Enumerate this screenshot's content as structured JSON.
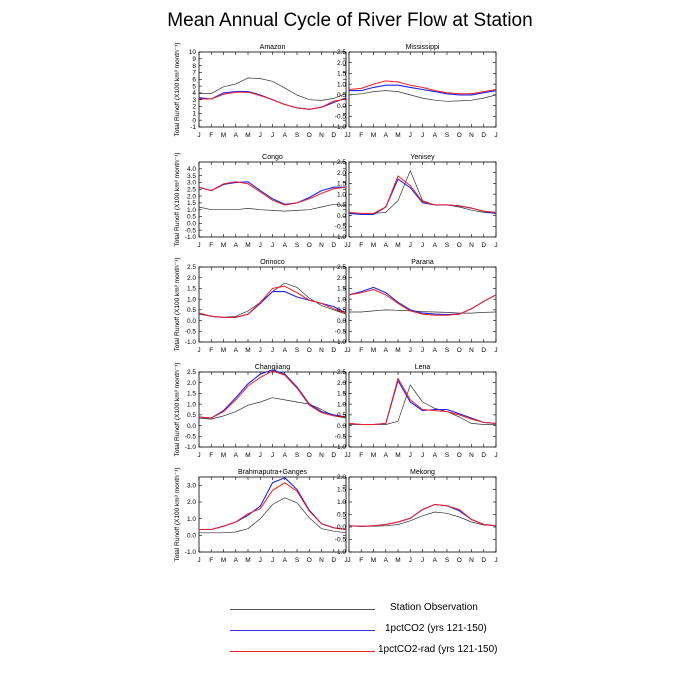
{
  "title": "Mean Annual Cycle of River Flow at Station",
  "ylabel": "Total Runoff (X100 km³ month⁻¹)",
  "months": [
    "J",
    "F",
    "M",
    "A",
    "M",
    "J",
    "J",
    "A",
    "S",
    "O",
    "N",
    "D",
    "J"
  ],
  "legend": [
    {
      "label": "Station Observation",
      "color": "#555555"
    },
    {
      "label": "1pctCO2 (yrs 121-150)",
      "color": "#3333ee"
    },
    {
      "label": "1pctCO2-rad (yrs 121-150)",
      "color": "#ee2222"
    }
  ],
  "chart_data": [
    {
      "type": "line",
      "title": "Amazon",
      "ylim": [
        -1,
        10
      ],
      "yticks": [
        -1,
        0,
        1,
        2,
        3,
        4,
        5,
        6,
        7,
        8,
        9,
        10
      ],
      "tick_decimals": 0,
      "series": [
        {
          "name": "Station Observation",
          "values": [
            3.9,
            3.9,
            4.9,
            5.3,
            6.2,
            6.1,
            5.7,
            4.7,
            3.7,
            3.0,
            2.9,
            3.2,
            3.9
          ]
        },
        {
          "name": "1pctCO2 (yrs 121-150)",
          "values": [
            3.3,
            3.1,
            4.0,
            4.2,
            4.2,
            3.7,
            3.0,
            2.3,
            1.8,
            1.6,
            1.9,
            2.6,
            3.3
          ]
        },
        {
          "name": "1pctCO2-rad (yrs 121-150)",
          "values": [
            3.1,
            3.1,
            3.8,
            4.1,
            4.1,
            3.6,
            3.0,
            2.3,
            1.8,
            1.6,
            1.9,
            2.8,
            3.1
          ]
        }
      ]
    },
    {
      "type": "line",
      "title": "Mississippi",
      "ylim": [
        -1,
        2.5
      ],
      "yticks": [
        -1,
        -0.5,
        0,
        0.5,
        1,
        1.5,
        2,
        2.5
      ],
      "tick_decimals": 1,
      "series": [
        {
          "name": "Station Observation",
          "values": [
            0.5,
            0.55,
            0.65,
            0.7,
            0.65,
            0.5,
            0.35,
            0.25,
            0.2,
            0.22,
            0.25,
            0.35,
            0.5
          ]
        },
        {
          "name": "1pctCO2 (yrs 121-150)",
          "values": [
            0.7,
            0.7,
            0.85,
            0.95,
            0.95,
            0.85,
            0.75,
            0.65,
            0.55,
            0.5,
            0.5,
            0.6,
            0.7
          ]
        },
        {
          "name": "1pctCO2-rad (yrs 121-150)",
          "values": [
            0.75,
            0.8,
            1.0,
            1.15,
            1.1,
            0.95,
            0.85,
            0.7,
            0.6,
            0.55,
            0.55,
            0.65,
            0.75
          ]
        }
      ]
    },
    {
      "type": "line",
      "title": "Congo",
      "ylim": [
        -1,
        4.5
      ],
      "yticks": [
        -1,
        -0.5,
        0,
        0.5,
        1,
        1.5,
        2,
        2.5,
        3,
        3.5,
        4
      ],
      "tick_decimals": 1,
      "series": [
        {
          "name": "Station Observation",
          "values": [
            1.2,
            1.0,
            1.0,
            1.0,
            1.1,
            1.0,
            0.95,
            0.9,
            0.95,
            1.0,
            1.2,
            1.4,
            1.3
          ]
        },
        {
          "name": "1pctCO2 (yrs 121-150)",
          "values": [
            2.65,
            2.4,
            2.85,
            3.0,
            3.05,
            2.4,
            1.8,
            1.4,
            1.5,
            1.9,
            2.4,
            2.65,
            2.65
          ]
        },
        {
          "name": "1pctCO2-rad (yrs 121-150)",
          "values": [
            2.65,
            2.4,
            2.9,
            3.05,
            2.9,
            2.3,
            1.7,
            1.35,
            1.5,
            1.8,
            2.2,
            2.55,
            2.65
          ]
        }
      ]
    },
    {
      "type": "line",
      "title": "Yenisey",
      "ylim": [
        -1,
        2.5
      ],
      "yticks": [
        -1,
        -0.5,
        0,
        0.5,
        1,
        1.5,
        2,
        2.5
      ],
      "tick_decimals": 1,
      "series": [
        {
          "name": "Station Observation",
          "values": [
            0.1,
            0.1,
            0.1,
            0.15,
            0.7,
            2.1,
            0.7,
            0.5,
            0.5,
            0.4,
            0.25,
            0.15,
            0.1
          ]
        },
        {
          "name": "1pctCO2 (yrs 121-150)",
          "values": [
            0.1,
            0.05,
            0.05,
            0.4,
            1.7,
            1.3,
            0.6,
            0.5,
            0.5,
            0.45,
            0.35,
            0.2,
            0.1
          ]
        },
        {
          "name": "1pctCO2-rad (yrs 121-150)",
          "values": [
            0.15,
            0.1,
            0.1,
            0.4,
            1.85,
            1.4,
            0.65,
            0.5,
            0.5,
            0.45,
            0.35,
            0.2,
            0.15
          ]
        }
      ]
    },
    {
      "type": "line",
      "title": "Orinoco",
      "ylim": [
        -1,
        2.5
      ],
      "yticks": [
        -1,
        -0.5,
        0,
        0.5,
        1,
        1.5,
        2,
        2.5
      ],
      "tick_decimals": 1,
      "series": [
        {
          "name": "Station Observation",
          "values": [
            0.3,
            0.2,
            0.15,
            0.2,
            0.45,
            0.85,
            1.35,
            1.75,
            1.55,
            1.05,
            0.7,
            0.5,
            0.3
          ]
        },
        {
          "name": "1pctCO2 (yrs 121-150)",
          "values": [
            0.35,
            0.2,
            0.15,
            0.15,
            0.3,
            0.8,
            1.35,
            1.35,
            1.1,
            0.95,
            0.8,
            0.65,
            0.35
          ]
        },
        {
          "name": "1pctCO2-rad (yrs 121-150)",
          "values": [
            0.35,
            0.2,
            0.15,
            0.15,
            0.3,
            0.85,
            1.5,
            1.6,
            1.3,
            0.95,
            0.8,
            0.55,
            0.35
          ]
        }
      ]
    },
    {
      "type": "line",
      "title": "Parana",
      "ylim": [
        -1,
        2.5
      ],
      "yticks": [
        -1,
        -0.5,
        0,
        0.5,
        1,
        1.5,
        2,
        2.5
      ],
      "tick_decimals": 1,
      "series": [
        {
          "name": "Station Observation",
          "values": [
            0.4,
            0.4,
            0.45,
            0.5,
            0.48,
            0.45,
            0.42,
            0.4,
            0.38,
            0.35,
            0.35,
            0.38,
            0.4
          ]
        },
        {
          "name": "1pctCO2 (yrs 121-150)",
          "values": [
            1.2,
            1.35,
            1.55,
            1.3,
            0.85,
            0.5,
            0.35,
            0.3,
            0.28,
            0.3,
            0.55,
            0.9,
            1.2
          ]
        },
        {
          "name": "1pctCO2-rad (yrs 121-150)",
          "values": [
            1.2,
            1.3,
            1.45,
            1.2,
            0.8,
            0.45,
            0.3,
            0.25,
            0.25,
            0.3,
            0.55,
            0.9,
            1.2
          ]
        }
      ]
    },
    {
      "type": "line",
      "title": "Changjiang",
      "ylim": [
        -1,
        2.5
      ],
      "yticks": [
        -1,
        -0.5,
        0,
        0.5,
        1,
        1.5,
        2,
        2.5
      ],
      "tick_decimals": 1,
      "series": [
        {
          "name": "Station Observation",
          "values": [
            0.35,
            0.3,
            0.45,
            0.65,
            0.95,
            1.1,
            1.3,
            1.2,
            1.1,
            1.0,
            0.75,
            0.45,
            0.35
          ]
        },
        {
          "name": "1pctCO2 (yrs 121-150)",
          "values": [
            0.4,
            0.35,
            0.7,
            1.3,
            1.95,
            2.4,
            2.6,
            2.4,
            1.8,
            1.0,
            0.65,
            0.5,
            0.4
          ]
        },
        {
          "name": "1pctCO2-rad (yrs 121-150)",
          "values": [
            0.4,
            0.35,
            0.65,
            1.2,
            1.85,
            2.25,
            2.55,
            2.35,
            1.75,
            0.95,
            0.6,
            0.45,
            0.4
          ]
        }
      ]
    },
    {
      "type": "line",
      "title": "Lena",
      "ylim": [
        -1,
        2.5
      ],
      "yticks": [
        -1,
        -0.5,
        0,
        0.5,
        1,
        1.5,
        2,
        2.5
      ],
      "tick_decimals": 1,
      "series": [
        {
          "name": "Station Observation",
          "values": [
            0.05,
            0.05,
            0.05,
            0.05,
            0.2,
            1.9,
            1.1,
            0.8,
            0.65,
            0.4,
            0.1,
            0.05,
            0.05
          ]
        },
        {
          "name": "1pctCO2 (yrs 121-150)",
          "values": [
            0.1,
            0.05,
            0.05,
            0.1,
            2.1,
            1.1,
            0.7,
            0.75,
            0.75,
            0.55,
            0.35,
            0.15,
            0.1
          ]
        },
        {
          "name": "1pctCO2-rad (yrs 121-150)",
          "values": [
            0.1,
            0.05,
            0.05,
            0.1,
            2.2,
            1.2,
            0.75,
            0.7,
            0.65,
            0.5,
            0.3,
            0.15,
            0.1
          ]
        }
      ]
    },
    {
      "type": "line",
      "title": "Brahmaputra+Ganges",
      "ylim": [
        -1,
        3.5
      ],
      "yticks": [
        -1,
        0,
        1,
        2,
        3
      ],
      "tick_decimals": 1,
      "series": [
        {
          "name": "Station Observation",
          "values": [
            0.15,
            0.15,
            0.15,
            0.2,
            0.4,
            1.0,
            1.85,
            2.25,
            1.95,
            1.05,
            0.4,
            0.25,
            0.15
          ]
        },
        {
          "name": "1pctCO2 (yrs 121-150)",
          "values": [
            0.35,
            0.35,
            0.55,
            0.8,
            1.2,
            1.75,
            3.15,
            3.45,
            2.75,
            1.5,
            0.7,
            0.45,
            0.35
          ]
        },
        {
          "name": "1pctCO2-rad (yrs 121-150)",
          "values": [
            0.35,
            0.35,
            0.55,
            0.8,
            1.3,
            1.6,
            2.7,
            3.15,
            2.65,
            1.45,
            0.7,
            0.45,
            0.35
          ]
        }
      ]
    },
    {
      "type": "line",
      "title": "Mekong",
      "ylim": [
        -1,
        2
      ],
      "yticks": [
        -1,
        -0.5,
        0,
        0.5,
        1,
        1.5,
        2
      ],
      "tick_decimals": 1,
      "series": [
        {
          "name": "Station Observation",
          "values": [
            0.05,
            0.03,
            0.03,
            0.05,
            0.1,
            0.25,
            0.45,
            0.6,
            0.55,
            0.4,
            0.2,
            0.08,
            0.05
          ]
        },
        {
          "name": "1pctCO2 (yrs 121-150)",
          "values": [
            0.05,
            0.03,
            0.05,
            0.1,
            0.2,
            0.35,
            0.7,
            0.9,
            0.85,
            0.65,
            0.3,
            0.1,
            0.05
          ]
        },
        {
          "name": "1pctCO2-rad (yrs 121-150)",
          "values": [
            0.05,
            0.03,
            0.05,
            0.1,
            0.2,
            0.35,
            0.7,
            0.9,
            0.85,
            0.7,
            0.3,
            0.1,
            0.05
          ]
        }
      ]
    }
  ]
}
